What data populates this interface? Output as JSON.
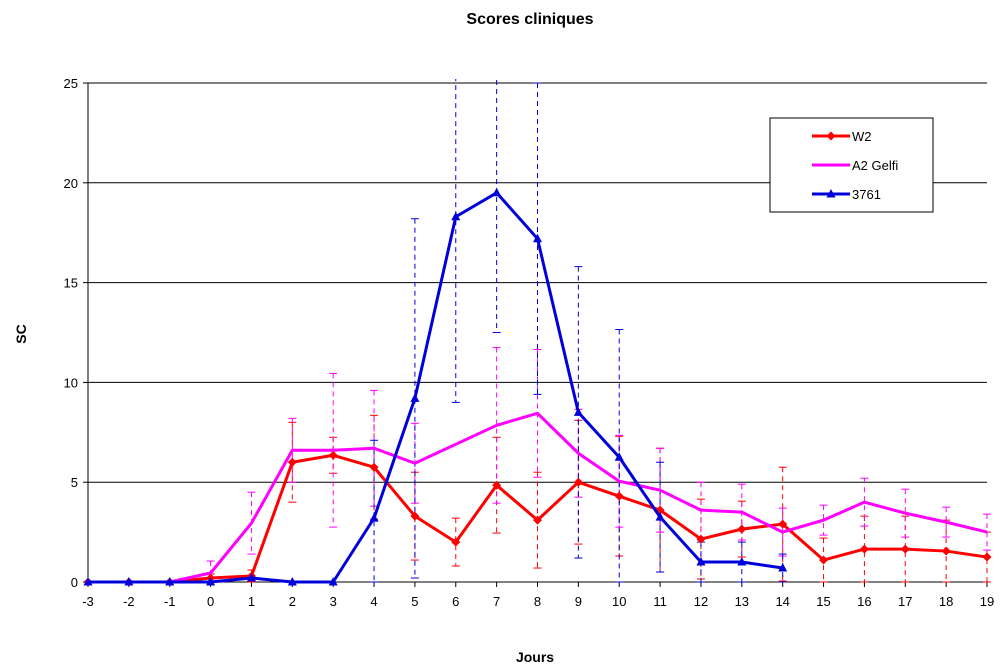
{
  "chart_data": {
    "type": "line",
    "title": "Scores cliniques",
    "xlabel": "Jours",
    "ylabel": "SC",
    "x": [
      -3,
      -2,
      -1,
      0,
      1,
      2,
      3,
      4,
      5,
      6,
      7,
      8,
      9,
      10,
      11,
      12,
      13,
      14,
      15,
      16,
      17,
      18,
      19
    ],
    "ylim": [
      0,
      25
    ],
    "yticks": [
      0,
      5,
      10,
      15,
      20,
      25
    ],
    "grid": "horizontal",
    "legend_position": "top-right",
    "series": [
      {
        "name": "W2",
        "color": "#ff0000",
        "marker": "diamond",
        "values": [
          0,
          0,
          0,
          0.2,
          0.3,
          6.0,
          6.35,
          5.75,
          3.3,
          2.0,
          4.85,
          3.1,
          5.0,
          4.3,
          3.6,
          2.15,
          2.65,
          2.9,
          1.1,
          1.65,
          1.65,
          1.55,
          1.25
        ],
        "errors": [
          0,
          0,
          0,
          0.2,
          0.3,
          2.0,
          0.9,
          2.6,
          2.2,
          1.2,
          2.4,
          2.4,
          3.1,
          3.0,
          3.1,
          2.0,
          1.4,
          2.85,
          1.1,
          1.65,
          1.65,
          1.55,
          1.25
        ]
      },
      {
        "name": "A2 Gelfi",
        "color": "#ff00ff",
        "marker": "none",
        "values": [
          0,
          0,
          0,
          0.45,
          2.95,
          6.6,
          6.6,
          6.7,
          5.95,
          null,
          7.85,
          8.45,
          6.45,
          5.05,
          4.6,
          3.6,
          3.5,
          2.5,
          3.1,
          4.0,
          3.45,
          3.0,
          2.5
        ],
        "errors": [
          0,
          0,
          0,
          0.6,
          1.55,
          1.6,
          3.85,
          2.9,
          2.0,
          null,
          3.9,
          3.2,
          2.2,
          2.3,
          2.1,
          1.4,
          1.4,
          1.2,
          0.75,
          1.2,
          1.2,
          0.75,
          0.9
        ]
      },
      {
        "name": "3761",
        "color": "#0000dd",
        "marker": "triangle",
        "values": [
          0,
          0,
          0,
          0,
          0.2,
          0,
          0,
          3.2,
          9.2,
          18.3,
          19.5,
          17.2,
          8.5,
          6.25,
          3.25,
          1.0,
          1.0,
          0.7,
          null,
          null,
          null,
          null,
          null
        ],
        "errors": [
          0,
          0,
          0,
          0,
          0,
          0,
          0,
          3.9,
          9.0,
          9.3,
          7.0,
          7.8,
          7.3,
          6.4,
          2.75,
          1.0,
          1.0,
          0.7,
          null,
          null,
          null,
          null,
          null
        ]
      }
    ]
  }
}
